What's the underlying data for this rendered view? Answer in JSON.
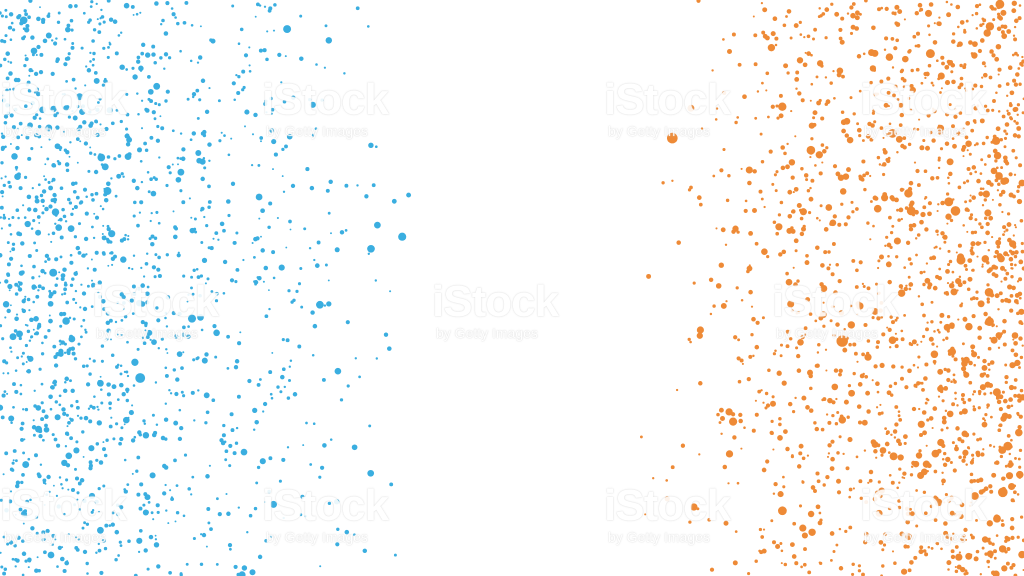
{
  "image": {
    "description_colors": {
      "background": "#ffffff",
      "left_splatter": "#3aaee0",
      "right_splatter": "#ee8a36"
    },
    "left_cluster_name": "blue-dot-splatter",
    "right_cluster_name": "orange-dot-splatter"
  },
  "watermark": {
    "brand": "iStock",
    "sub": "by Getty Images"
  }
}
